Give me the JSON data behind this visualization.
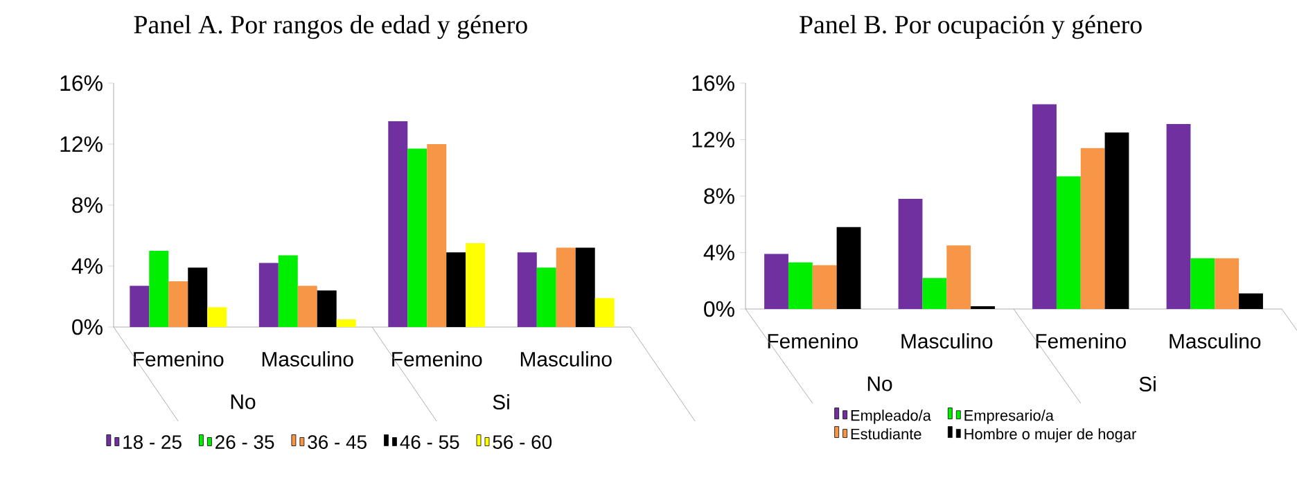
{
  "chart_data": [
    {
      "type": "bar",
      "title": "Panel A. Por rangos de edad y género",
      "categories": [
        "Femenino",
        "Masculino",
        "Femenino",
        "Masculino"
      ],
      "annotations": [
        "No",
        "Si"
      ],
      "series": [
        {
          "name": "18 - 25",
          "color": "#7030a0",
          "values": [
            2.7,
            4.2,
            13.5,
            4.9
          ]
        },
        {
          "name": "26 - 35",
          "color": "#00ee00",
          "values": [
            5.0,
            4.7,
            11.7,
            3.9
          ]
        },
        {
          "name": "36 - 45",
          "color": "#f79646",
          "values": [
            3.0,
            2.7,
            12.0,
            5.2
          ]
        },
        {
          "name": "46 - 55",
          "color": "#000000",
          "values": [
            3.9,
            2.4,
            4.9,
            5.2
          ]
        },
        {
          "name": "56 - 60",
          "color": "#ffff00",
          "values": [
            1.3,
            0.5,
            5.5,
            1.9
          ]
        }
      ],
      "ylim": [
        0,
        16
      ],
      "yticks": [
        {
          "value": 0,
          "label": "0%"
        },
        {
          "value": 4,
          "label": "4%"
        },
        {
          "value": 8,
          "label": "8%"
        },
        {
          "value": 12,
          "label": "12%"
        },
        {
          "value": 16,
          "label": "16%"
        }
      ],
      "grid": false,
      "legend": "bottom"
    },
    {
      "type": "bar",
      "title": "Panel B. Por ocupación y género",
      "categories": [
        "Femenino",
        "Masculino",
        "Femenino",
        "Masculino"
      ],
      "annotations": [
        "No",
        "Si"
      ],
      "series": [
        {
          "name": "Empleado/a",
          "color": "#7030a0",
          "values": [
            3.9,
            7.8,
            14.5,
            13.1
          ]
        },
        {
          "name": "Empresario/a",
          "color": "#00ee00",
          "values": [
            3.3,
            2.2,
            9.4,
            3.6
          ]
        },
        {
          "name": "Estudiante",
          "color": "#f79646",
          "values": [
            3.1,
            4.5,
            11.4,
            3.6
          ]
        },
        {
          "name": "Hombre o mujer de hogar",
          "color": "#000000",
          "values": [
            5.8,
            0.2,
            12.5,
            1.1
          ]
        }
      ],
      "ylim": [
        0,
        16
      ],
      "yticks": [
        {
          "value": 0,
          "label": "0%"
        },
        {
          "value": 4,
          "label": "4%"
        },
        {
          "value": 8,
          "label": "8%"
        },
        {
          "value": 12,
          "label": "12%"
        },
        {
          "value": 16,
          "label": "16%"
        }
      ],
      "grid": false,
      "legend": "bottom"
    }
  ]
}
